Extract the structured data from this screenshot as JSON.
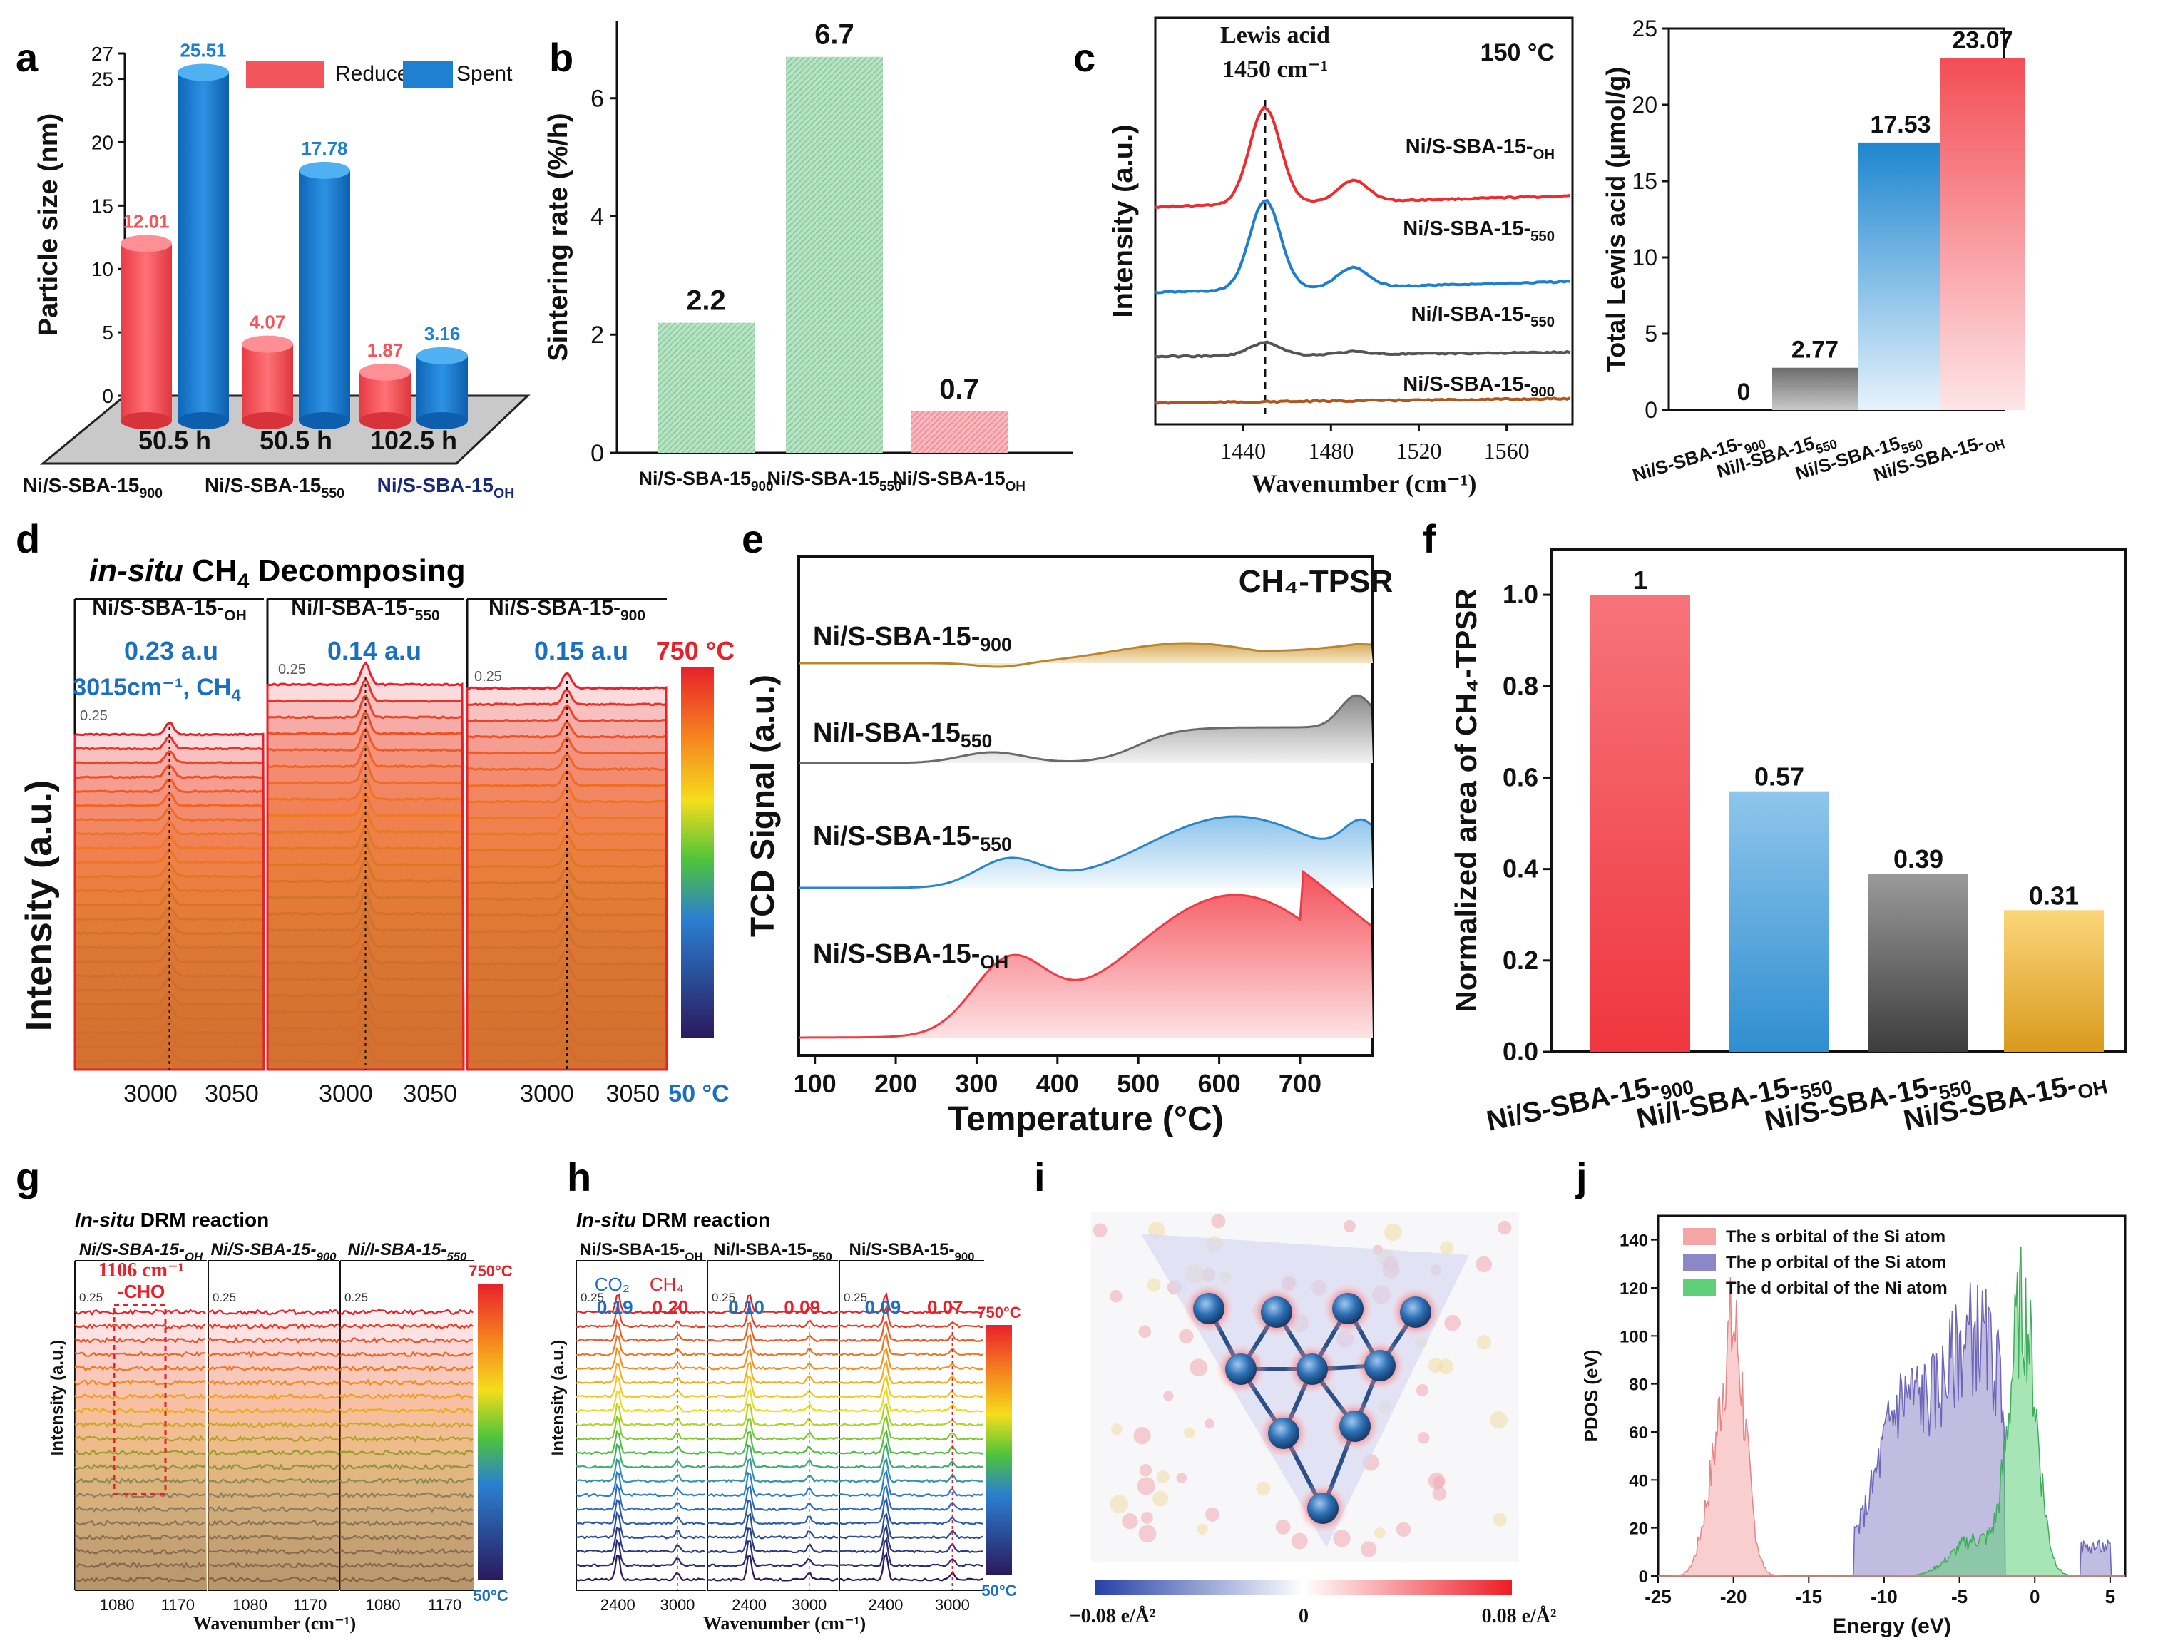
{
  "figure": {
    "panel_letters": [
      "a",
      "b",
      "c",
      "d",
      "e",
      "f",
      "g",
      "h",
      "i",
      "j"
    ]
  },
  "colors": {
    "red": "#f2555b",
    "blue": "#1f7fd0",
    "green_hatch": "#9fd6b0",
    "pink_hatch": "#f5a6ad",
    "lewis_blue": "#2b8fd1",
    "gray": "#7d7d7d",
    "orange": "#f1b53c"
  },
  "chart_data": [
    {
      "panel": "a",
      "type": "bar",
      "title": "",
      "ylabel": "Particle size (nm)",
      "ylim": [
        0,
        27
      ],
      "yticks": [
        "0",
        "5",
        "10",
        "15",
        "20",
        "25",
        "27"
      ],
      "categories": [
        "Ni/S-SBA-15-900",
        "Ni/S-SBA-15-550",
        "Ni/S-SBA-15-OH"
      ],
      "category_labels": [
        {
          "main": "Ni/S-SBA-15",
          "sub": "900"
        },
        {
          "main": "Ni/S-SBA-15",
          "sub": "550"
        },
        {
          "main": "Ni/S-SBA-15",
          "sub": "OH"
        }
      ],
      "durations": [
        "50.5 h",
        "50.5 h",
        "102.5 h"
      ],
      "series": [
        {
          "name": "Reduced",
          "values": [
            12.01,
            4.07,
            1.87
          ],
          "labels": [
            "12.01",
            "4.07",
            "1.87"
          ]
        },
        {
          "name": "Spent",
          "values": [
            25.51,
            17.78,
            3.16
          ],
          "labels": [
            "25.51",
            "17.78",
            "3.16"
          ]
        }
      ]
    },
    {
      "panel": "b",
      "type": "bar",
      "ylabel": "Sintering rate (%/h)",
      "ylim": [
        0,
        7.3
      ],
      "yticks": [
        "0",
        "2",
        "4",
        "6"
      ],
      "categories": [
        "Ni/S-SBA-15-900",
        "Ni/S-SBA-15-550",
        "Ni/S-SBA-15-OH"
      ],
      "category_labels": [
        {
          "main": "Ni/S-SBA-15",
          "sub": "900"
        },
        {
          "main": "Ni/S-SBA-15",
          "sub": "550"
        },
        {
          "main": "Ni/S-SBA-15",
          "sub": "OH"
        }
      ],
      "values": [
        2.2,
        6.7,
        0.7
      ],
      "labels": [
        "2.2",
        "6.7",
        "0.7"
      ]
    },
    {
      "panel": "c-left",
      "type": "line",
      "ylabel": "Intensity (a.u.)",
      "xlabel": "Wavenumber (cm⁻¹)",
      "xlim": [
        1400,
        1590
      ],
      "xticks": [
        "1440",
        "1480",
        "1520",
        "1560"
      ],
      "condition": "150 °C",
      "annotation": "Lewis acid",
      "annotation2": "1450 cm⁻¹",
      "series": [
        {
          "name": "Ni/S-SBA-15-OH",
          "main": "Ni/S-SBA-15",
          "sub": "OH",
          "peak_height": 1.0
        },
        {
          "name": "Ni/S-SBA-15-550",
          "main": "Ni/S-SBA-15",
          "sub": "550",
          "peak_height": 0.8
        },
        {
          "name": "Ni/I-SBA-15-550",
          "main": "Ni/I-SBA-15",
          "sub": "550",
          "peak_height": 0.12
        },
        {
          "name": "Ni/S-SBA-15-900",
          "main": "Ni/S-SBA-15",
          "sub": "900",
          "peak_height": 0.0
        }
      ]
    },
    {
      "panel": "c-right",
      "type": "bar",
      "ylabel": "Total Lewis acid (μmol/g)",
      "ylim": [
        0,
        25
      ],
      "yticks": [
        "0",
        "5",
        "10",
        "15",
        "20",
        "25"
      ],
      "categories": [
        "Ni/S-SBA-15-900",
        "Ni/I-SBA-15550",
        "Ni/S-SBA-15550",
        "Ni/S-SBA-15-OH"
      ],
      "category_labels": [
        {
          "main": "Ni/S-SBA-15-",
          "sub": "900"
        },
        {
          "main": "Ni/I-SBA-15",
          "sub": "550"
        },
        {
          "main": "Ni/S-SBA-15",
          "sub": "550"
        },
        {
          "main": "Ni/S-SBA-15-",
          "sub": "OH"
        }
      ],
      "values": [
        0,
        2.77,
        17.53,
        23.07
      ],
      "labels": [
        "0",
        "2.77",
        "17.53",
        "23.07"
      ]
    },
    {
      "panel": "d",
      "type": "line",
      "title_italic": "in-situ",
      "title_rest": " CH",
      "title_sub": "4",
      "title_tail": " Decomposing",
      "ylabel": "Intensity (a.u.)",
      "xticks": [
        "3000",
        "3050"
      ],
      "temperature_top": "750 °C",
      "temperature_bottom": "50 °C",
      "scale_bar": "0.25",
      "peak_label": "3015cm⁻¹, CH",
      "peak_label_sub": "4",
      "subpanels": [
        {
          "main": "Ni/S-SBA-15-",
          "sub": "OH",
          "value": "0.23 a.u"
        },
        {
          "main": "Ni/I-SBA-15-",
          "sub": "550",
          "value": "0.14 a.u"
        },
        {
          "main": "Ni/S-SBA-15-",
          "sub": "900",
          "value": "0.15 a.u"
        }
      ]
    },
    {
      "panel": "e",
      "type": "area",
      "title": "CH₄-TPSR",
      "ylabel": "TCD Signal (a.u.)",
      "xlabel": "Temperature (°C)",
      "xlim": [
        80,
        790
      ],
      "xticks": [
        "100",
        "200",
        "300",
        "400",
        "500",
        "600",
        "700"
      ],
      "series": [
        {
          "main": "Ni/S-SBA-15-",
          "sub": "900"
        },
        {
          "main": "Ni/I-SBA-15",
          "sub": "550"
        },
        {
          "main": "Ni/S-SBA-15-",
          "sub": "550"
        },
        {
          "main": "Ni/S-SBA-15-",
          "sub": "OH"
        }
      ]
    },
    {
      "panel": "f",
      "type": "bar",
      "ylabel": "Normalized area of CH₄-TPSR",
      "ylim": [
        0,
        1.1
      ],
      "yticks": [
        "0.0",
        "0.2",
        "0.4",
        "0.6",
        "0.8",
        "1.0"
      ],
      "categories": [
        "Ni/S-SBA-15-900",
        "Ni/I-SBA-15-550",
        "Ni/S-SBA-15-550",
        "Ni/S-SBA-15-OH"
      ],
      "category_labels": [
        {
          "main": "Ni/S-SBA-15-",
          "sub": "900"
        },
        {
          "main": "Ni/I-SBA-15-",
          "sub": "550"
        },
        {
          "main": "Ni/S-SBA-15-",
          "sub": "550"
        },
        {
          "main": "Ni/S-SBA-15-",
          "sub": "OH"
        }
      ],
      "values": [
        1.0,
        0.57,
        0.39,
        0.31
      ],
      "labels": [
        "1",
        "0.57",
        "0.39",
        "0.31"
      ]
    },
    {
      "panel": "g",
      "type": "line",
      "title_italic": "In-situ",
      "title_rest": " DRM reaction",
      "ylabel": "Intensity (a.u.)",
      "xlabel": "Wavenumber (cm⁻¹)",
      "xticks": [
        "1080",
        "1170"
      ],
      "scale_bar": "0.25",
      "peak_label": "1106 cm⁻¹",
      "peak_label2": "-CHO",
      "temperature_top": "750°C",
      "temperature_bottom": "50°C",
      "subpanels": [
        {
          "main": "Ni/S-SBA-15-",
          "sub": "OH"
        },
        {
          "main": "Ni/S-SBA-15-",
          "sub": "900"
        },
        {
          "main": "Ni/I-SBA-15-",
          "sub": "550"
        }
      ]
    },
    {
      "panel": "h",
      "type": "line",
      "title_italic": "In-situ",
      "title_rest": " DRM reaction",
      "ylabel": "Intensity (a.u.)",
      "xlabel": "Wavenumber (cm⁻¹)",
      "xticks": [
        "2400",
        "3000"
      ],
      "scale_bar": "0.25",
      "co2_label": "CO₂",
      "ch4_label": "CH₄",
      "temperature_top": "750°C",
      "temperature_bottom": "50°C",
      "subpanels": [
        {
          "main": "Ni/S-SBA-15-",
          "sub": "OH",
          "co2": "0.19",
          "ch4": "0.20"
        },
        {
          "main": "Ni/I-SBA-15-",
          "sub": "550",
          "co2": "0.10",
          "ch4": "0.09"
        },
        {
          "main": "Ni/S-SBA-15-",
          "sub": "900",
          "co2": "0.09",
          "ch4": "0.07"
        }
      ]
    },
    {
      "panel": "i",
      "type": "heatmap",
      "colorbar_min": "−0.08 e/Å²",
      "colorbar_mid": "0",
      "colorbar_max": "0.08 e/Å²"
    },
    {
      "panel": "j",
      "type": "area",
      "ylabel": "PDOS (eV)",
      "xlabel": "Energy (eV)",
      "xlim": [
        -25,
        6
      ],
      "ylim": [
        0,
        150
      ],
      "xticks": [
        "-25",
        "-20",
        "-15",
        "-10",
        "-5",
        "0",
        "5"
      ],
      "yticks": [
        "0",
        "20",
        "40",
        "60",
        "80",
        "100",
        "120",
        "140"
      ],
      "legend": [
        "The s orbital of the Si atom",
        "The p orbital of the Si atom",
        "The d orbital of the Ni atom"
      ]
    }
  ]
}
